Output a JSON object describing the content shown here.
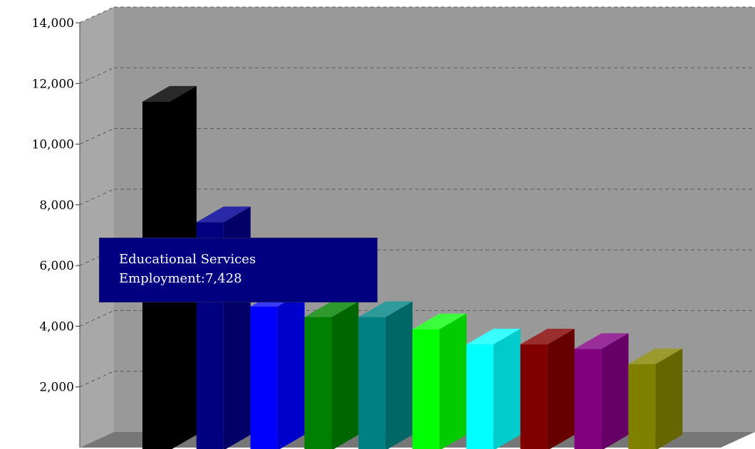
{
  "chart_data": {
    "type": "bar",
    "style": "3d",
    "y_ticks": [
      2000,
      4000,
      6000,
      8000,
      10000,
      12000,
      14000
    ],
    "y_tick_labels": [
      "2,000",
      "4,000",
      "6,000",
      "8,000",
      "10,000",
      "12,000",
      "14,000"
    ],
    "ylim": [
      0,
      14000
    ],
    "grid": true,
    "bars": [
      {
        "value": 11400,
        "color": "#000000",
        "side_color": "#000000",
        "top_color": "#2a2a2a"
      },
      {
        "value": 7428,
        "color": "#000080",
        "side_color": "#000066",
        "top_color": "#2a2aa8"
      },
      {
        "value": 4650,
        "color": "#0000ff",
        "side_color": "#0000cc",
        "top_color": "#3a3aff"
      },
      {
        "value": 4300,
        "color": "#008000",
        "side_color": "#006600",
        "top_color": "#2e9a2e"
      },
      {
        "value": 4300,
        "color": "#008080",
        "side_color": "#006666",
        "top_color": "#2e9a9a"
      },
      {
        "value": 3900,
        "color": "#00ff00",
        "side_color": "#00cc00",
        "top_color": "#3aff3a"
      },
      {
        "value": 3400,
        "color": "#00ffff",
        "side_color": "#00cccc",
        "top_color": "#3affff"
      },
      {
        "value": 3400,
        "color": "#800000",
        "side_color": "#660000",
        "top_color": "#9a2e2e"
      },
      {
        "value": 3250,
        "color": "#800080",
        "side_color": "#660066",
        "top_color": "#9a2e9a"
      },
      {
        "value": 2750,
        "color": "#808000",
        "side_color": "#666600",
        "top_color": "#9a9a2e"
      }
    ],
    "tooltip": {
      "line1": "Educational Services",
      "line2": "Employment:7,428"
    }
  },
  "colors": {
    "back_wall": "#999999",
    "side_wall": "#a8a8a8",
    "floor": "#777777",
    "grid": "#5a5a5a",
    "tooltip_bg": "#000080"
  }
}
